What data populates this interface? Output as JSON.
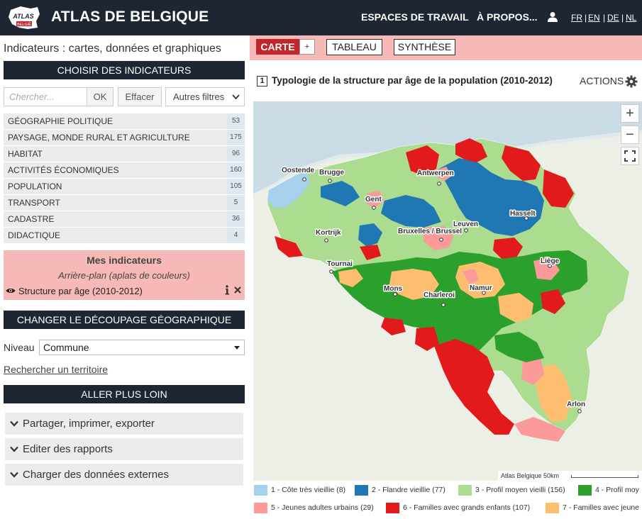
{
  "header": {
    "logo_text_top": "ATLAS",
    "logo_text_bottom": "BELGIË",
    "title": "ATLAS DE BELGIQUE",
    "nav": [
      "ESPACES DE TRAVAIL",
      "À PROPOS..."
    ],
    "languages": [
      "FR",
      "EN",
      "DE",
      "NL"
    ],
    "active_language": "FR",
    "icons": {
      "user": "user-icon"
    }
  },
  "sidebar": {
    "title": "Indicateurs : cartes, données et graphiques",
    "choose_header": "CHOISIR DES INDICATEURS",
    "search_placeholder": "Chercher...",
    "ok_label": "OK",
    "clear_label": "Effacer",
    "filters_label": "Autres filtres",
    "categories": [
      {
        "label": "GÉOGRAPHIE POLITIQUE",
        "count": "53"
      },
      {
        "label": "PAYSAGE, MONDE RURAL ET AGRICULTURE",
        "count": "175"
      },
      {
        "label": "HABITAT",
        "count": "96"
      },
      {
        "label": "ACTIVITÉS ÉCONOMIQUES",
        "count": "160"
      },
      {
        "label": "POPULATION",
        "count": "105"
      },
      {
        "label": "TRANSPORT",
        "count": "5"
      },
      {
        "label": "CADASTRE",
        "count": "36"
      },
      {
        "label": "DIDACTIQUE",
        "count": "4"
      }
    ],
    "my_indicators": {
      "title": "Mes indicateurs",
      "subtitle": "Arrière-plan (aplats de couleurs)",
      "indicator": "Structure par âge (2010-2012)"
    },
    "change_header": "CHANGER LE DÉCOUPAGE GÉOGRAPHIQUE",
    "niveau_label": "Niveau",
    "niveau_value": "Commune",
    "search_territory": "Rechercher un territoire",
    "further_header": "ALLER PLUS LOIN",
    "accordion": [
      "Partager, imprimer, exporter",
      "Editer des rapports",
      "Charger des données externes"
    ]
  },
  "main": {
    "tabs": {
      "carte": "CARTE",
      "plus": "+",
      "tableau": "TABLEAU",
      "synthese": "SYNTHÈSE"
    },
    "map_number": "1",
    "map_title": "Typologie de la structure par âge de la population (2010-2012)",
    "actions_label": "ACTIONS",
    "zoom_in": "+",
    "zoom_out": "−",
    "scale_text": "Atlas Belgique  50km",
    "cities": [
      "Oostende",
      "Brugge",
      "Antwerpen",
      "Gent",
      "Hasselt",
      "Kortrijk",
      "Leuven",
      "Bruxelles / Brussel",
      "Liège",
      "Tournai",
      "Mons",
      "Charleroi",
      "Namur",
      "Arlon"
    ],
    "legend": [
      {
        "label": "1 - Côte très vieillie (8)",
        "color": "#a6d0ec"
      },
      {
        "label": "2 - Flandre vieillie (77)",
        "color": "#1f78b4"
      },
      {
        "label": "3 - Profil moyen vieilli (156)",
        "color": "#abdc90"
      },
      {
        "label": "4 - Profil moy",
        "color": "#2ca02c"
      },
      {
        "label": "5 - Jeunes adultes urbains (29)",
        "color": "#fb9a99"
      },
      {
        "label": "6 - Familles avec grands enfants (107)",
        "color": "#e31a1c"
      },
      {
        "label": "7 - Familles avec jeune",
        "color": "#fdbf6f"
      }
    ]
  }
}
